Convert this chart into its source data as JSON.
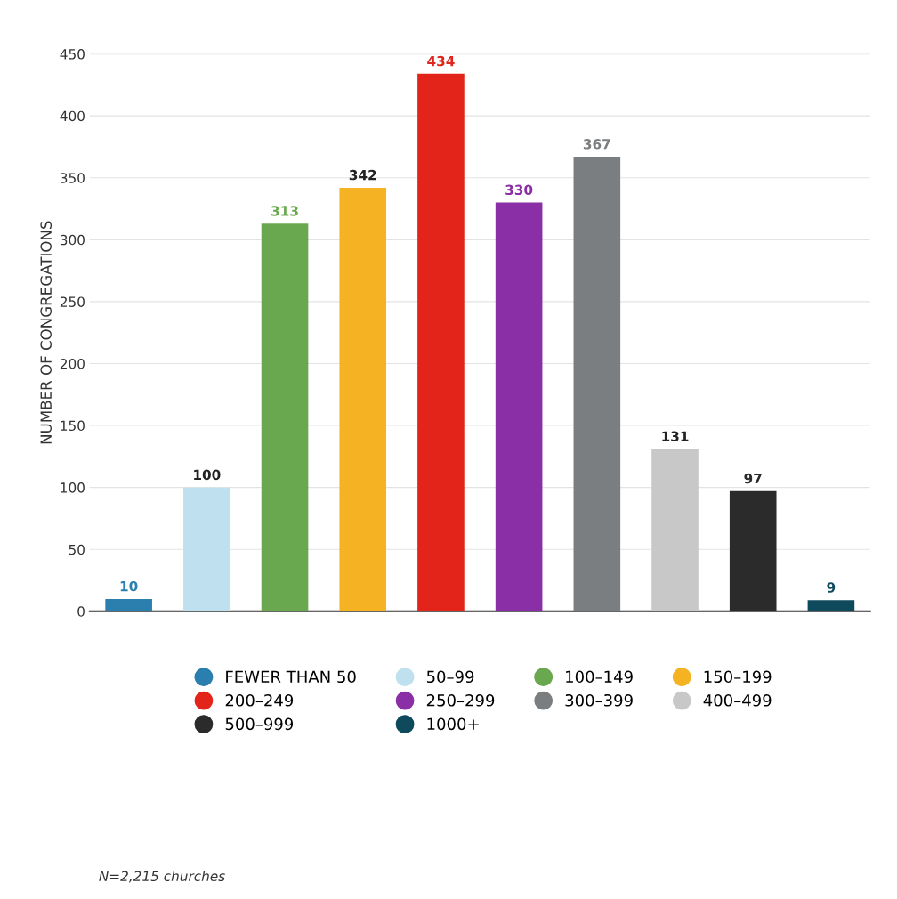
{
  "chart_data": {
    "type": "bar",
    "ylabel": "NUMBER OF CONGREGATIONS",
    "categories": [
      null,
      null,
      null,
      null,
      null,
      null,
      null,
      null,
      null,
      null
    ],
    "series": [
      {
        "name": "FEWER THAN 50",
        "color": "#2a7fae",
        "values": [
          10,
          null,
          null,
          null,
          null,
          null,
          null,
          null,
          null,
          null
        ]
      },
      {
        "name": "50–99",
        "color": "#bfe0ee",
        "values": [
          null,
          100,
          null,
          null,
          null,
          null,
          null,
          null,
          null,
          null
        ]
      },
      {
        "name": "100–149",
        "color": "#6aa84f",
        "values": [
          null,
          null,
          313,
          null,
          null,
          null,
          null,
          null,
          null,
          null
        ]
      },
      {
        "name": "150–199",
        "color": "#f5b323",
        "values": [
          null,
          null,
          null,
          342,
          null,
          null,
          null,
          null,
          null,
          null
        ]
      },
      {
        "name": "200–249",
        "color": "#e3241b",
        "values": [
          null,
          null,
          null,
          null,
          434,
          null,
          null,
          null,
          null,
          null
        ]
      },
      {
        "name": "250–299",
        "color": "#8a2fa5",
        "values": [
          null,
          null,
          null,
          null,
          null,
          330,
          null,
          null,
          null,
          null
        ]
      },
      {
        "name": "300–399",
        "color": "#7b7e80",
        "values": [
          null,
          null,
          null,
          null,
          null,
          null,
          367,
          null,
          null,
          null
        ]
      },
      {
        "name": "400–499",
        "color": "#c8c8c8",
        "values": [
          null,
          null,
          null,
          null,
          null,
          null,
          null,
          131,
          null,
          null
        ]
      },
      {
        "name": "500–999",
        "color": "#2b2b2b",
        "values": [
          null,
          null,
          null,
          null,
          null,
          null,
          null,
          null,
          97,
          null
        ]
      },
      {
        "name": "1000+",
        "color": "#0f4a5c",
        "values": [
          null,
          null,
          null,
          null,
          null,
          null,
          null,
          null,
          null,
          9
        ]
      }
    ],
    "ylim": [
      0,
      450
    ],
    "yticks": [
      0,
      50,
      100,
      150,
      200,
      250,
      300,
      350,
      400,
      450
    ],
    "grid": "y",
    "legend": "bottom",
    "tick_labels": "y",
    "data_labels": true,
    "annotations": [
      "N=2,215 churches"
    ]
  }
}
